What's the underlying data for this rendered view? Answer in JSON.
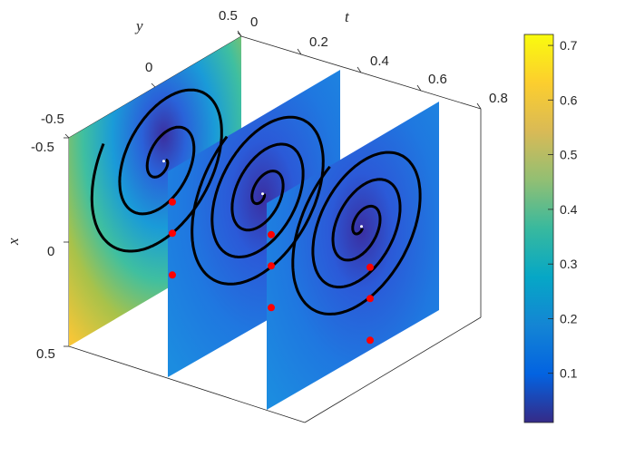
{
  "chart_data": {
    "type": "3d-slice-surface",
    "axes": {
      "t": {
        "label": "t",
        "ticks": [
          "0",
          "0.2",
          "0.4",
          "0.6",
          "0.8"
        ],
        "range": [
          0,
          0.8
        ]
      },
      "y": {
        "label": "y",
        "ticks": [
          "-0.5",
          "0",
          "0.5"
        ],
        "range": [
          -0.5,
          0.5
        ]
      },
      "x": {
        "label": "x",
        "ticks": [
          "-0.5",
          "0",
          "0.5"
        ],
        "range": [
          -0.5,
          0.5
        ]
      }
    },
    "slices_t": [
      0,
      0.4,
      0.8
    ],
    "colorbar": {
      "ticks": [
        "0.1",
        "0.2",
        "0.3",
        "0.4",
        "0.5",
        "0.6",
        "0.7"
      ],
      "range": [
        0.01,
        0.72
      ],
      "colormap": "parula"
    },
    "spirals": [
      {
        "t": 0,
        "turns": 2.6,
        "center_color": "#3a3aa8"
      },
      {
        "t": 0.4,
        "turns": 3.6,
        "center_color": "#3a3aa8"
      },
      {
        "t": 0.8,
        "turns": 3.6,
        "center_color": "#3a3aa8"
      }
    ],
    "markers": [
      {
        "t": 0,
        "points": [
          [
            0.1,
            0.1
          ],
          [
            0.25,
            0.1
          ],
          [
            0.45,
            0.1
          ]
        ]
      },
      {
        "t": 0.4,
        "points": [
          [
            0.1,
            0.1
          ],
          [
            0.25,
            0.1
          ],
          [
            0.45,
            0.1
          ]
        ]
      },
      {
        "t": 0.8,
        "points": [
          [
            0.1,
            0.1
          ],
          [
            0.25,
            0.1
          ],
          [
            0.45,
            0.1
          ]
        ]
      }
    ],
    "marker_color": "#ff0000",
    "curve_color": "#000000"
  }
}
